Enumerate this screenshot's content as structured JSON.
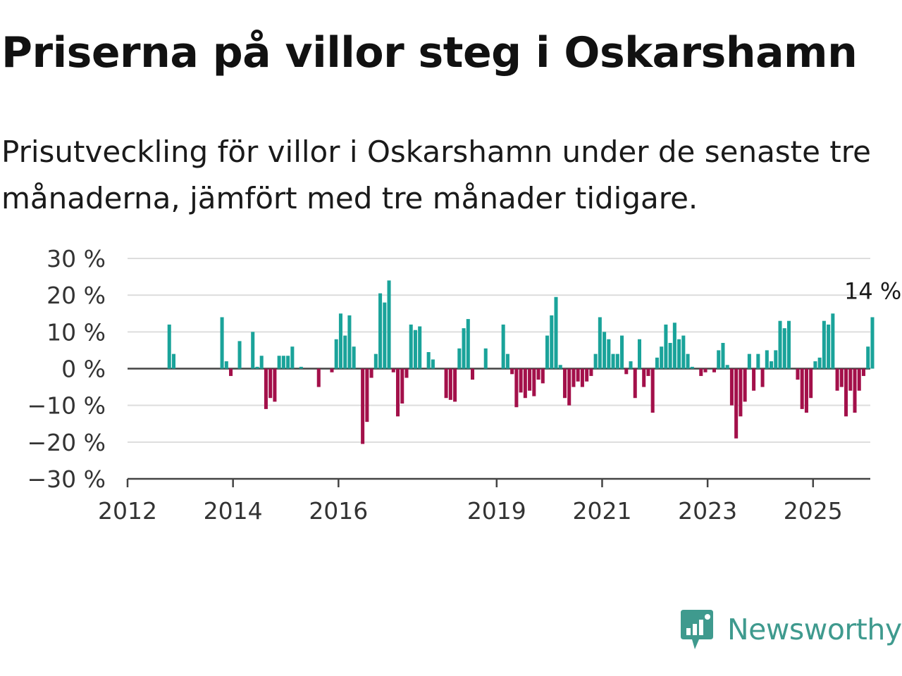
{
  "title": "Priserna på villor steg i Oskarshamn",
  "subtitle": "Prisutveckling för villor i Oskarshamn under de senaste tre månaderna, jämfört med tre månader tidigare.",
  "brand": {
    "name": "Newsworthy",
    "icon": "newsworthy-logo-icon",
    "color": "#3f9a8e"
  },
  "colors": {
    "positive": "#1aa39a",
    "negative": "#a3104a",
    "grid": "#dddddd",
    "axis": "#444444"
  },
  "chart_data": {
    "type": "bar",
    "start": "2012-01",
    "frequency": "monthly",
    "ylim": [
      -30,
      30
    ],
    "yticks": [
      30,
      20,
      10,
      0,
      -10,
      -20,
      -30
    ],
    "ytick_labels": [
      "30 %",
      "20 %",
      "10 %",
      "0 %",
      "−10 %",
      "−20 %",
      "−30 %"
    ],
    "xticks": [
      "2012",
      "2014",
      "2016",
      "2019",
      "2021",
      "2023",
      "2025"
    ],
    "grid": true,
    "annotation": "14 %",
    "unit": "%",
    "values": [
      null,
      null,
      null,
      null,
      null,
      null,
      null,
      null,
      null,
      12,
      4,
      0,
      0,
      0,
      0,
      0,
      0,
      0,
      0,
      0,
      0,
      14,
      2,
      -2,
      0,
      7.5,
      0,
      0,
      10,
      0.5,
      3.5,
      -11,
      -8,
      -9,
      3.5,
      3.5,
      3.5,
      6,
      0,
      0.5,
      0,
      0,
      0,
      -5,
      0,
      0,
      -1,
      8,
      15,
      9,
      14.5,
      6,
      0,
      -20.5,
      -14.5,
      -2.5,
      4,
      20.5,
      18,
      24,
      -1,
      -13,
      -9.5,
      -2.5,
      12,
      10.5,
      11.5,
      0,
      4.5,
      2.5,
      0,
      0,
      -8,
      -8.5,
      -9,
      5.5,
      11,
      13.5,
      -3,
      0,
      0,
      5.5,
      0,
      0,
      0,
      12,
      4,
      -1.5,
      -10.5,
      -6.5,
      -8,
      -6,
      -7.5,
      -3,
      -4,
      9,
      14.5,
      19.5,
      1,
      -8,
      -10,
      -5,
      -3.5,
      -5,
      -3.5,
      -2,
      4,
      14,
      10,
      8,
      4,
      4,
      9,
      -1.5,
      2,
      -8,
      8,
      -5,
      -2,
      -12,
      3,
      6,
      12,
      7,
      12.5,
      8,
      9,
      4,
      0.5,
      0,
      -2,
      -1,
      0,
      -1,
      5,
      7,
      1,
      -10,
      -19,
      -13,
      -9,
      4,
      -6,
      4,
      -5,
      5,
      2,
      5,
      13,
      11,
      13,
      0,
      -3,
      -11,
      -12,
      -8,
      2,
      3,
      13,
      12,
      15,
      -6,
      -5,
      -13,
      -6,
      -12,
      -6,
      -2,
      6,
      14
    ]
  }
}
